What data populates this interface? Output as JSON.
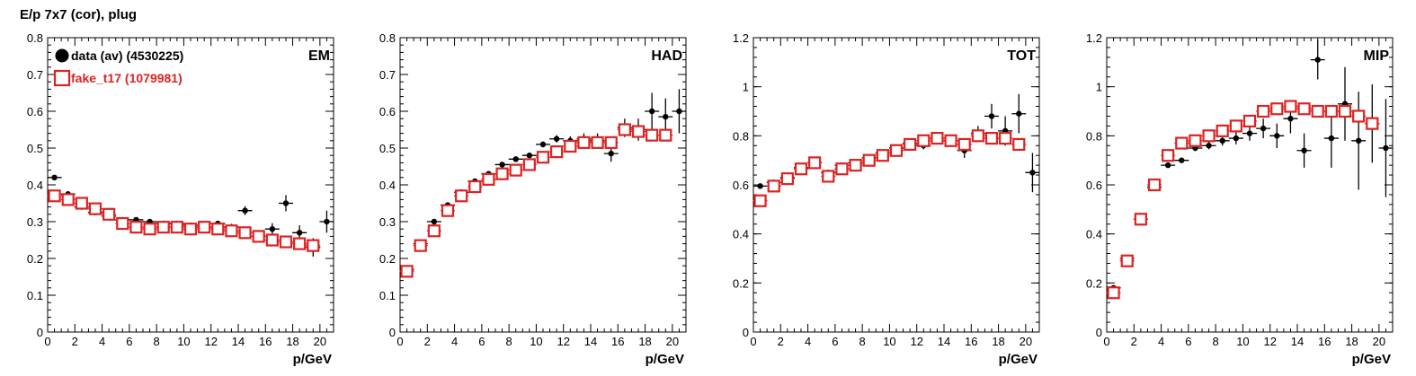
{
  "figure_title": "E/p 7x7 (cor), plug",
  "colors": {
    "data": "#000000",
    "fake": "#dd2222",
    "frame": "#000000"
  },
  "chart_data": [
    {
      "type": "scatter",
      "title": "EM",
      "xlabel": "p/GeV",
      "ylabel": "",
      "xlim": [
        0,
        21
      ],
      "ylim": [
        0,
        0.8
      ],
      "xticks": [
        0,
        2,
        4,
        6,
        8,
        10,
        12,
        14,
        16,
        18,
        20
      ],
      "xtick_labels": [
        "0",
        "2",
        "4",
        "6",
        "8",
        "10",
        "12",
        "14",
        "16",
        "18",
        "20"
      ],
      "yticks": [
        0,
        0.1,
        0.2,
        0.3,
        0.4,
        0.5,
        0.6,
        0.7,
        0.8
      ],
      "ytick_labels": [
        "0",
        "0.1",
        "0.2",
        "0.3",
        "0.4",
        "0.5",
        "0.6",
        "0.7",
        "0.8"
      ],
      "legend": [
        {
          "label": "data (av) (4530225)",
          "marker": "filled-circle",
          "color": "#000000"
        },
        {
          "label": "fake_t17 (1079981)",
          "marker": "open-square",
          "color": "#dd2222"
        }
      ],
      "series": [
        {
          "name": "data (av) (4530225)",
          "marker": "dot",
          "x": [
            0.5,
            1.5,
            2.5,
            3.5,
            4.5,
            5.5,
            6.5,
            7.5,
            8.5,
            9.5,
            10.5,
            11.5,
            12.5,
            13.5,
            14.5,
            15.5,
            16.5,
            17.5,
            18.5,
            19.5,
            20.5
          ],
          "y": [
            0.42,
            0.375,
            0.34,
            0.325,
            0.315,
            0.305,
            0.305,
            0.3,
            0.295,
            0.295,
            0.29,
            0.285,
            0.295,
            0.285,
            0.33,
            0.26,
            0.28,
            0.35,
            0.27,
            0.23,
            0.3
          ],
          "yerr": [
            0.005,
            0.004,
            0.004,
            0.004,
            0.004,
            0.004,
            0.004,
            0.004,
            0.004,
            0.004,
            0.005,
            0.006,
            0.007,
            0.009,
            0.012,
            0.014,
            0.016,
            0.022,
            0.02,
            0.025,
            0.03
          ]
        },
        {
          "name": "fake_t17 (1079981)",
          "marker": "open-square",
          "x": [
            0.5,
            1.5,
            2.5,
            3.5,
            4.5,
            5.5,
            6.5,
            7.5,
            8.5,
            9.5,
            10.5,
            11.5,
            12.5,
            13.5,
            14.5,
            15.5,
            16.5,
            17.5,
            18.5,
            19.5
          ],
          "y": [
            0.37,
            0.36,
            0.35,
            0.335,
            0.32,
            0.295,
            0.285,
            0.28,
            0.285,
            0.285,
            0.28,
            0.285,
            0.28,
            0.275,
            0.27,
            0.26,
            0.25,
            0.245,
            0.24,
            0.235
          ],
          "yerr": []
        }
      ]
    },
    {
      "type": "scatter",
      "title": "HAD",
      "xlabel": "p/GeV",
      "ylabel": "",
      "xlim": [
        0,
        21
      ],
      "ylim": [
        0,
        0.8
      ],
      "xticks": [
        0,
        2,
        4,
        6,
        8,
        10,
        12,
        14,
        16,
        18,
        20
      ],
      "xtick_labels": [
        "0",
        "2",
        "4",
        "6",
        "8",
        "10",
        "12",
        "14",
        "16",
        "18",
        "20"
      ],
      "yticks": [
        0,
        0.1,
        0.2,
        0.3,
        0.4,
        0.5,
        0.6,
        0.7,
        0.8
      ],
      "ytick_labels": [
        "0",
        "0.1",
        "0.2",
        "0.3",
        "0.4",
        "0.5",
        "0.6",
        "0.7",
        "0.8"
      ],
      "series": [
        {
          "name": "",
          "marker": "dot",
          "x": [
            0.5,
            1.5,
            2.5,
            3.5,
            4.5,
            5.5,
            6.5,
            7.5,
            8.5,
            9.5,
            10.5,
            11.5,
            12.5,
            13.5,
            14.5,
            15.5,
            16.5,
            17.5,
            18.5,
            19.5,
            20.5
          ],
          "y": [
            0.17,
            0.24,
            0.3,
            0.345,
            0.38,
            0.41,
            0.43,
            0.455,
            0.47,
            0.48,
            0.51,
            0.525,
            0.52,
            0.525,
            0.52,
            0.485,
            0.555,
            0.55,
            0.6,
            0.585,
            0.6
          ],
          "yerr": [
            0.005,
            0.005,
            0.005,
            0.005,
            0.005,
            0.005,
            0.005,
            0.005,
            0.006,
            0.006,
            0.008,
            0.01,
            0.012,
            0.015,
            0.02,
            0.022,
            0.025,
            0.03,
            0.05,
            0.05,
            0.06
          ]
        },
        {
          "name": "",
          "marker": "open-square",
          "x": [
            0.5,
            1.5,
            2.5,
            3.5,
            4.5,
            5.5,
            6.5,
            7.5,
            8.5,
            9.5,
            10.5,
            11.5,
            12.5,
            13.5,
            14.5,
            15.5,
            16.5,
            17.5,
            18.5,
            19.5
          ],
          "y": [
            0.165,
            0.235,
            0.275,
            0.33,
            0.37,
            0.395,
            0.415,
            0.43,
            0.44,
            0.455,
            0.475,
            0.49,
            0.505,
            0.515,
            0.515,
            0.515,
            0.55,
            0.545,
            0.535,
            0.535
          ],
          "yerr": []
        }
      ]
    },
    {
      "type": "scatter",
      "title": "TOT",
      "xlabel": "p/GeV",
      "ylabel": "",
      "xlim": [
        0,
        21
      ],
      "ylim": [
        0,
        1.2
      ],
      "xticks": [
        0,
        2,
        4,
        6,
        8,
        10,
        12,
        14,
        16,
        18,
        20
      ],
      "xtick_labels": [
        "0",
        "2",
        "4",
        "6",
        "8",
        "10",
        "12",
        "14",
        "16",
        "18",
        "20"
      ],
      "yticks": [
        0,
        0.2,
        0.4,
        0.6,
        0.8,
        1.0,
        1.2
      ],
      "ytick_labels": [
        "0",
        "0.2",
        "0.4",
        "0.6",
        "0.8",
        "1",
        "1.2"
      ],
      "series": [
        {
          "name": "",
          "marker": "dot",
          "x": [
            0.5,
            1.5,
            2.5,
            3.5,
            4.5,
            5.5,
            6.5,
            7.5,
            8.5,
            9.5,
            10.5,
            11.5,
            12.5,
            13.5,
            14.5,
            15.5,
            16.5,
            17.5,
            18.5,
            19.5,
            20.5
          ],
          "y": [
            0.595,
            0.61,
            0.63,
            0.67,
            0.69,
            0.65,
            0.68,
            0.69,
            0.71,
            0.73,
            0.75,
            0.77,
            0.76,
            0.79,
            0.78,
            0.74,
            0.81,
            0.88,
            0.82,
            0.89,
            0.65
          ],
          "yerr": [
            0.005,
            0.005,
            0.005,
            0.005,
            0.006,
            0.006,
            0.006,
            0.007,
            0.007,
            0.008,
            0.01,
            0.012,
            0.015,
            0.018,
            0.025,
            0.03,
            0.03,
            0.05,
            0.06,
            0.08,
            0.08
          ]
        },
        {
          "name": "",
          "marker": "open-square",
          "x": [
            0.5,
            1.5,
            2.5,
            3.5,
            4.5,
            5.5,
            6.5,
            7.5,
            8.5,
            9.5,
            10.5,
            11.5,
            12.5,
            13.5,
            14.5,
            15.5,
            16.5,
            17.5,
            18.5,
            19.5
          ],
          "y": [
            0.535,
            0.595,
            0.625,
            0.665,
            0.69,
            0.635,
            0.665,
            0.68,
            0.7,
            0.72,
            0.74,
            0.765,
            0.78,
            0.79,
            0.78,
            0.765,
            0.8,
            0.79,
            0.79,
            0.765
          ],
          "yerr": []
        }
      ]
    },
    {
      "type": "scatter",
      "title": "MIP",
      "xlabel": "p/GeV",
      "ylabel": "",
      "xlim": [
        0,
        21
      ],
      "ylim": [
        0,
        1.2
      ],
      "xticks": [
        0,
        2,
        4,
        6,
        8,
        10,
        12,
        14,
        16,
        18,
        20
      ],
      "xtick_labels": [
        "0",
        "2",
        "4",
        "6",
        "8",
        "10",
        "12",
        "14",
        "16",
        "18",
        "20"
      ],
      "yticks": [
        0,
        0.2,
        0.4,
        0.6,
        0.8,
        1.0,
        1.2
      ],
      "ytick_labels": [
        "0",
        "0.2",
        "0.4",
        "0.6",
        "0.8",
        "1",
        "1.2"
      ],
      "series": [
        {
          "name": "",
          "marker": "dot",
          "x": [
            0.5,
            1.5,
            2.5,
            3.5,
            4.5,
            5.5,
            6.5,
            7.5,
            8.5,
            9.5,
            10.5,
            11.5,
            12.5,
            13.5,
            14.5,
            15.5,
            16.5,
            17.5,
            18.5,
            19.5,
            20.5
          ],
          "y": [
            0.18,
            0.3,
            0.46,
            0.59,
            0.68,
            0.7,
            0.75,
            0.76,
            0.78,
            0.79,
            0.81,
            0.83,
            0.8,
            0.87,
            0.74,
            1.11,
            0.79,
            0.93,
            0.78,
            0.85,
            0.75
          ],
          "yerr": [
            0.005,
            0.006,
            0.006,
            0.008,
            0.008,
            0.01,
            0.012,
            0.015,
            0.02,
            0.025,
            0.03,
            0.04,
            0.05,
            0.06,
            0.07,
            0.08,
            0.12,
            0.15,
            0.2,
            0.16,
            0.2
          ]
        },
        {
          "name": "",
          "marker": "open-square",
          "x": [
            0.5,
            1.5,
            2.5,
            3.5,
            4.5,
            5.5,
            6.5,
            7.5,
            8.5,
            9.5,
            10.5,
            11.5,
            12.5,
            13.5,
            14.5,
            15.5,
            16.5,
            17.5,
            18.5,
            19.5
          ],
          "y": [
            0.16,
            0.29,
            0.46,
            0.6,
            0.72,
            0.77,
            0.78,
            0.8,
            0.82,
            0.84,
            0.86,
            0.9,
            0.91,
            0.92,
            0.91,
            0.9,
            0.9,
            0.9,
            0.88,
            0.85
          ],
          "yerr": []
        }
      ]
    }
  ]
}
